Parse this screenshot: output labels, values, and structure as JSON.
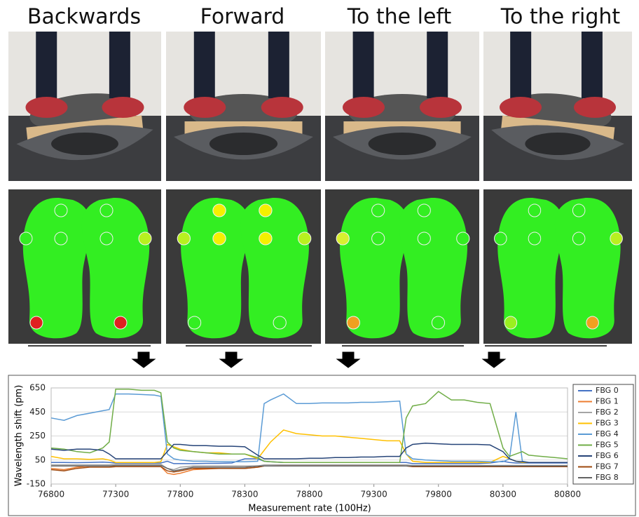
{
  "headings": [
    "Backwards",
    "Forward",
    "To the left",
    "To the right"
  ],
  "chart_data": {
    "type": "line",
    "xlabel": "Measurement rate (100Hz)",
    "ylabel": "Wavelength shift (pm)",
    "x": [
      76800,
      76900,
      77000,
      77100,
      77200,
      77250,
      77300,
      77400,
      77500,
      77600,
      77650,
      77700,
      77750,
      77800,
      77900,
      78000,
      78100,
      78200,
      78300,
      78400,
      78450,
      78500,
      78600,
      78700,
      78800,
      78900,
      79000,
      79100,
      79200,
      79300,
      79400,
      79500,
      79550,
      79600,
      79700,
      79800,
      79900,
      80000,
      80100,
      80200,
      80300,
      80350,
      80400,
      80450,
      80500,
      80600,
      80700,
      80800
    ],
    "xlim": [
      76800,
      80800
    ],
    "xticks": [
      76800,
      77300,
      77800,
      78300,
      78800,
      79300,
      79800,
      80300,
      80800
    ],
    "ylim": [
      -150,
      650
    ],
    "yticks": [
      -150,
      50,
      250,
      450,
      650
    ],
    "legend": "right",
    "series": [
      {
        "name": "FBG 0",
        "color": "#4472c4",
        "values": [
          30,
          30,
          28,
          30,
          32,
          30,
          25,
          25,
          25,
          25,
          25,
          40,
          20,
          20,
          20,
          22,
          22,
          25,
          60,
          60,
          40,
          35,
          30,
          30,
          30,
          30,
          30,
          30,
          30,
          30,
          30,
          30,
          30,
          20,
          20,
          20,
          20,
          20,
          20,
          25,
          40,
          30,
          25,
          25,
          25,
          25,
          25,
          25
        ]
      },
      {
        "name": "FBG 1",
        "color": "#ed7d31",
        "values": [
          -20,
          -30,
          -10,
          0,
          0,
          0,
          -5,
          -5,
          -5,
          -5,
          -5,
          -60,
          -70,
          -60,
          -30,
          -25,
          -20,
          -20,
          -20,
          -10,
          0,
          0,
          5,
          5,
          5,
          5,
          5,
          5,
          5,
          5,
          5,
          5,
          0,
          0,
          0,
          0,
          0,
          0,
          0,
          0,
          0,
          0,
          0,
          0,
          0,
          0,
          0,
          0
        ]
      },
      {
        "name": "FBG 2",
        "color": "#a5a5a5",
        "values": [
          10,
          10,
          10,
          10,
          10,
          10,
          15,
          15,
          15,
          15,
          15,
          -20,
          -30,
          -10,
          0,
          0,
          0,
          0,
          0,
          0,
          10,
          10,
          10,
          10,
          10,
          10,
          10,
          10,
          10,
          10,
          10,
          10,
          10,
          5,
          5,
          5,
          5,
          5,
          5,
          5,
          5,
          5,
          5,
          5,
          5,
          5,
          5,
          5
        ]
      },
      {
        "name": "FBG 3",
        "color": "#ffc000",
        "values": [
          80,
          60,
          60,
          55,
          60,
          50,
          30,
          30,
          30,
          30,
          35,
          180,
          160,
          140,
          120,
          110,
          110,
          100,
          100,
          60,
          130,
          200,
          300,
          270,
          260,
          250,
          250,
          240,
          230,
          220,
          210,
          210,
          100,
          40,
          30,
          30,
          30,
          30,
          30,
          30,
          80,
          60,
          40,
          30,
          30,
          30,
          30,
          30
        ]
      },
      {
        "name": "FBG 4",
        "color": "#5b9bd5",
        "values": [
          400,
          380,
          420,
          440,
          460,
          470,
          600,
          600,
          595,
          590,
          580,
          100,
          60,
          50,
          40,
          40,
          35,
          35,
          35,
          40,
          520,
          550,
          600,
          520,
          520,
          525,
          525,
          525,
          530,
          530,
          535,
          540,
          100,
          60,
          50,
          45,
          40,
          40,
          40,
          35,
          35,
          60,
          450,
          40,
          30,
          30,
          30,
          30
        ]
      },
      {
        "name": "FBG 5",
        "color": "#70ad47",
        "values": [
          150,
          140,
          120,
          110,
          150,
          200,
          640,
          640,
          630,
          630,
          610,
          200,
          150,
          130,
          120,
          110,
          100,
          100,
          100,
          70,
          40,
          35,
          30,
          30,
          30,
          30,
          30,
          30,
          30,
          30,
          30,
          30,
          400,
          500,
          520,
          620,
          550,
          550,
          530,
          520,
          150,
          80,
          100,
          120,
          90,
          80,
          70,
          60
        ]
      },
      {
        "name": "FBG 6",
        "color": "#264478",
        "values": [
          140,
          130,
          140,
          140,
          130,
          100,
          60,
          60,
          60,
          60,
          60,
          120,
          180,
          180,
          170,
          170,
          165,
          165,
          160,
          90,
          60,
          60,
          60,
          60,
          65,
          65,
          70,
          70,
          75,
          75,
          80,
          80,
          150,
          180,
          190,
          185,
          180,
          180,
          180,
          175,
          120,
          60,
          40,
          35,
          30,
          30,
          30,
          30
        ]
      },
      {
        "name": "FBG 7",
        "color": "#9e480e",
        "values": [
          -30,
          -40,
          -20,
          -10,
          -10,
          -10,
          -5,
          -5,
          -5,
          -5,
          -5,
          -40,
          -50,
          -40,
          -20,
          -20,
          -20,
          -20,
          -20,
          -10,
          0,
          0,
          0,
          0,
          0,
          0,
          0,
          0,
          0,
          0,
          0,
          0,
          0,
          -5,
          -5,
          -5,
          -5,
          -5,
          -5,
          -5,
          -5,
          -5,
          -5,
          -5,
          -5,
          -5,
          -5,
          -5
        ]
      },
      {
        "name": "FBG 8",
        "color": "#636363",
        "values": [
          0,
          0,
          0,
          0,
          0,
          0,
          5,
          5,
          5,
          5,
          5,
          -20,
          -40,
          -30,
          -10,
          -10,
          -10,
          -10,
          -10,
          0,
          0,
          0,
          0,
          0,
          0,
          0,
          0,
          0,
          0,
          0,
          0,
          0,
          0,
          0,
          0,
          0,
          0,
          0,
          0,
          0,
          0,
          0,
          0,
          0,
          0,
          0,
          0,
          0
        ]
      }
    ]
  }
}
